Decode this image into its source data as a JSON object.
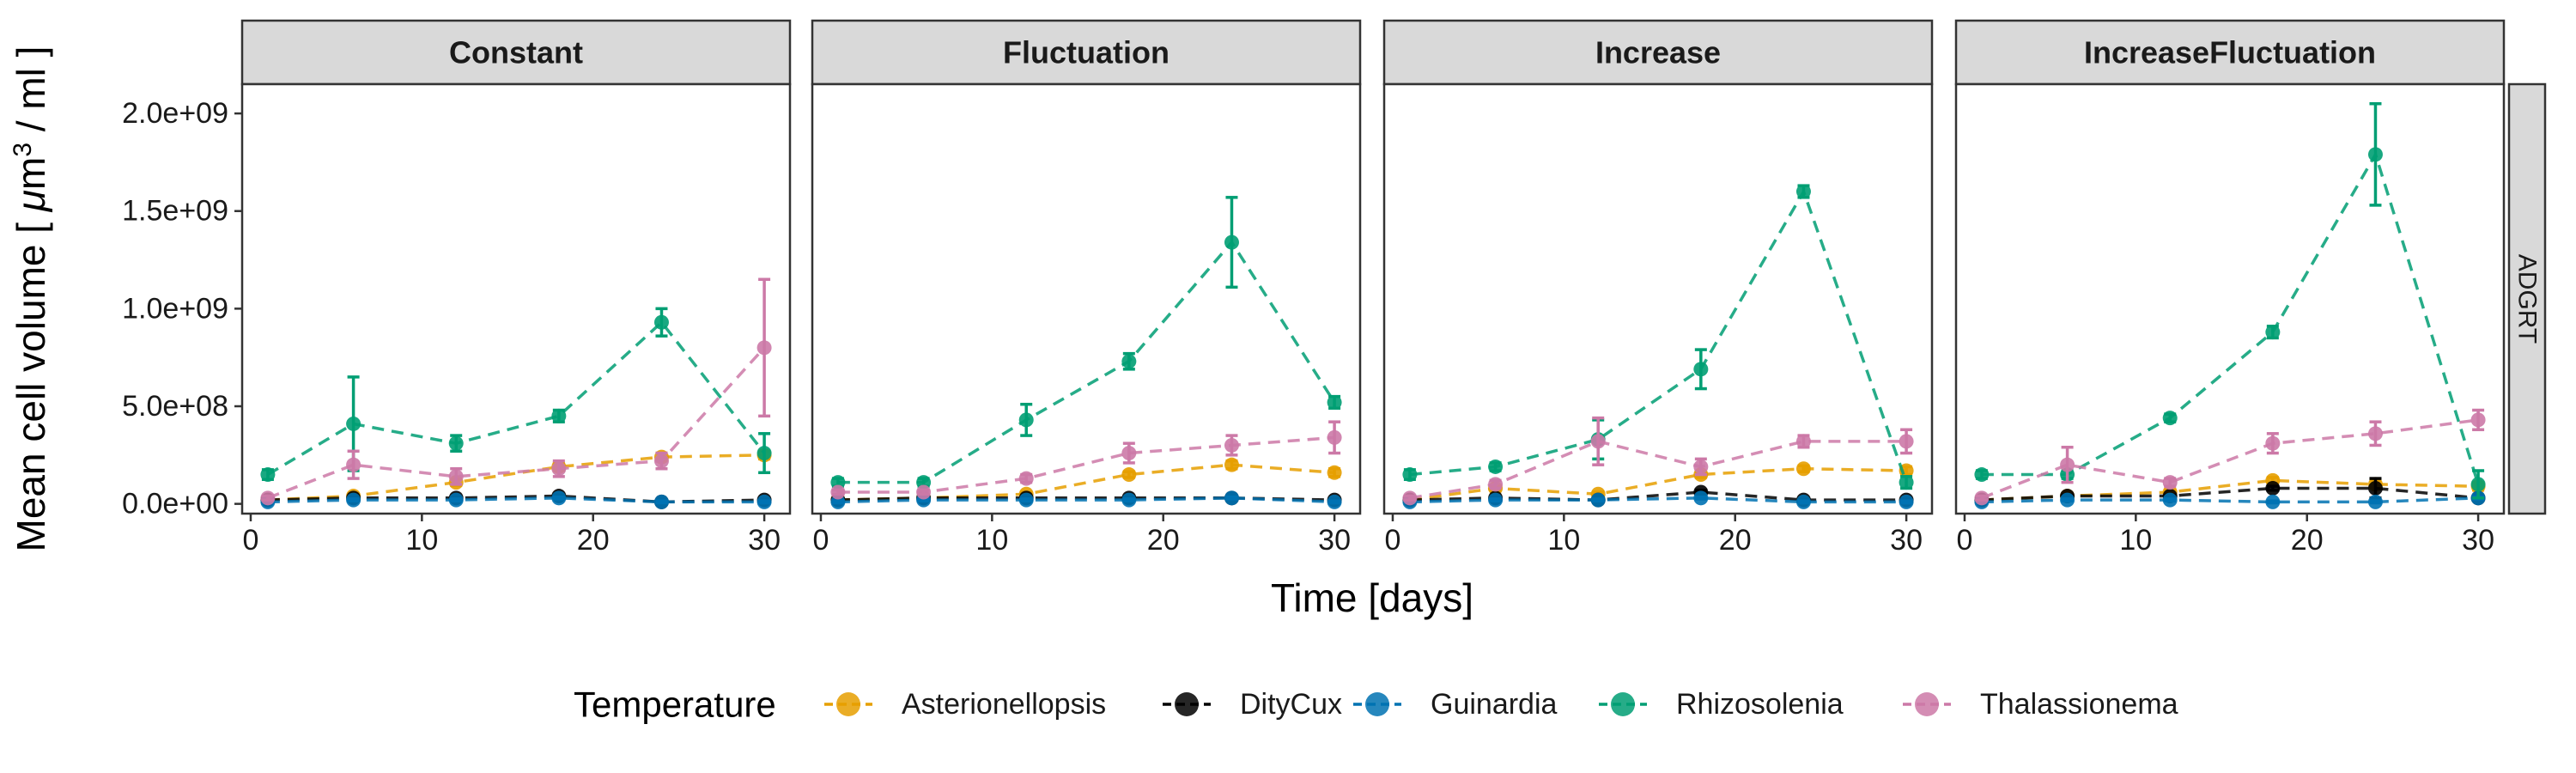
{
  "chart_data": {
    "type": "line",
    "facet_row_label": "ADGRT",
    "xlabel": "Time [days]",
    "ylabel": "Mean cell volume [ μm³ / ml ]",
    "ylabel_parts": {
      "pre": "Mean cell volume [ ",
      "mu": "μ",
      "m": "m",
      "sup": "3",
      "post": " / ml ]"
    },
    "xlim": [
      -0.5,
      31.5
    ],
    "ylim": [
      -50000000,
      2150000000
    ],
    "x_ticks": [
      0,
      10,
      20,
      30
    ],
    "x_tick_labels": [
      "0",
      "10",
      "20",
      "30"
    ],
    "y_ticks": [
      0,
      500000000,
      1000000000,
      1500000000,
      2000000000
    ],
    "y_tick_labels": [
      "0.0e+00",
      "5.0e+08",
      "1.0e+09",
      "1.5e+09",
      "2.0e+09"
    ],
    "legend": {
      "title": "Temperature",
      "placement": "bottom",
      "entries": [
        "Asterionellopsis",
        "DityCux",
        "Guinardia",
        "Rhizosolenia",
        "Thalassionema"
      ]
    },
    "series_colors": {
      "Asterionellopsis": "#E69F00",
      "DityCux": "#000000",
      "Guinardia": "#0072B2",
      "Rhizosolenia": "#009E73",
      "Thalassionema": "#CC79A7"
    },
    "x": [
      1,
      6,
      12,
      18,
      24,
      30
    ],
    "panels": [
      {
        "title": "Constant",
        "series": [
          {
            "name": "Asterionellopsis",
            "values": [
              20000000,
              40000000,
              110000000,
              190000000,
              240000000,
              250000000
            ],
            "err": [
              5000000,
              10000000,
              15000000,
              20000000,
              20000000,
              20000000
            ]
          },
          {
            "name": "DityCux",
            "values": [
              20000000,
              30000000,
              30000000,
              40000000,
              10000000,
              20000000
            ],
            "err": [
              5000000,
              5000000,
              5000000,
              5000000,
              5000000,
              5000000
            ]
          },
          {
            "name": "Guinardia",
            "values": [
              10000000,
              20000000,
              20000000,
              30000000,
              10000000,
              10000000
            ],
            "err": [
              5000000,
              5000000,
              5000000,
              5000000,
              5000000,
              5000000
            ]
          },
          {
            "name": "Rhizosolenia",
            "values": [
              150000000,
              410000000,
              310000000,
              450000000,
              930000000,
              260000000
            ],
            "err": [
              25000000,
              240000000,
              40000000,
              30000000,
              70000000,
              100000000
            ]
          },
          {
            "name": "Thalassionema",
            "values": [
              30000000,
              200000000,
              140000000,
              180000000,
              220000000,
              800000000
            ],
            "err": [
              10000000,
              70000000,
              40000000,
              40000000,
              40000000,
              350000000
            ]
          }
        ]
      },
      {
        "title": "Fluctuation",
        "series": [
          {
            "name": "Asterionellopsis",
            "values": [
              20000000,
              30000000,
              50000000,
              150000000,
              200000000,
              160000000
            ],
            "err": [
              5000000,
              5000000,
              10000000,
              15000000,
              20000000,
              20000000
            ]
          },
          {
            "name": "DityCux",
            "values": [
              20000000,
              30000000,
              30000000,
              30000000,
              30000000,
              20000000
            ],
            "err": [
              5000000,
              5000000,
              5000000,
              5000000,
              5000000,
              5000000
            ]
          },
          {
            "name": "Guinardia",
            "values": [
              10000000,
              20000000,
              20000000,
              20000000,
              30000000,
              10000000
            ],
            "err": [
              5000000,
              5000000,
              5000000,
              5000000,
              5000000,
              5000000
            ]
          },
          {
            "name": "Rhizosolenia",
            "values": [
              110000000,
              110000000,
              430000000,
              730000000,
              1340000000,
              520000000
            ],
            "err": [
              20000000,
              20000000,
              80000000,
              40000000,
              230000000,
              30000000
            ]
          },
          {
            "name": "Thalassionema",
            "values": [
              60000000,
              60000000,
              130000000,
              260000000,
              300000000,
              340000000
            ],
            "err": [
              10000000,
              10000000,
              20000000,
              50000000,
              50000000,
              80000000
            ]
          }
        ]
      },
      {
        "title": "Increase",
        "series": [
          {
            "name": "Asterionellopsis",
            "values": [
              20000000,
              80000000,
              50000000,
              150000000,
              180000000,
              170000000
            ],
            "err": [
              5000000,
              10000000,
              10000000,
              15000000,
              15000000,
              20000000
            ]
          },
          {
            "name": "DityCux",
            "values": [
              20000000,
              30000000,
              20000000,
              60000000,
              20000000,
              20000000
            ],
            "err": [
              5000000,
              5000000,
              5000000,
              10000000,
              5000000,
              5000000
            ]
          },
          {
            "name": "Guinardia",
            "values": [
              10000000,
              20000000,
              20000000,
              30000000,
              10000000,
              10000000
            ],
            "err": [
              5000000,
              5000000,
              5000000,
              5000000,
              5000000,
              5000000
            ]
          },
          {
            "name": "Rhizosolenia",
            "values": [
              150000000,
              190000000,
              330000000,
              690000000,
              1600000000,
              110000000
            ],
            "err": [
              25000000,
              20000000,
              100000000,
              100000000,
              30000000,
              30000000
            ]
          },
          {
            "name": "Thalassionema",
            "values": [
              30000000,
              100000000,
              320000000,
              190000000,
              320000000,
              320000000
            ],
            "err": [
              10000000,
              20000000,
              120000000,
              40000000,
              30000000,
              60000000
            ]
          }
        ]
      },
      {
        "title": "IncreaseFluctuation",
        "series": [
          {
            "name": "Asterionellopsis",
            "values": [
              20000000,
              40000000,
              60000000,
              120000000,
              100000000,
              90000000
            ],
            "err": [
              5000000,
              10000000,
              10000000,
              15000000,
              20000000,
              20000000
            ]
          },
          {
            "name": "DityCux",
            "values": [
              20000000,
              40000000,
              40000000,
              80000000,
              80000000,
              30000000
            ],
            "err": [
              5000000,
              5000000,
              5000000,
              10000000,
              50000000,
              5000000
            ]
          },
          {
            "name": "Guinardia",
            "values": [
              10000000,
              20000000,
              20000000,
              10000000,
              10000000,
              30000000
            ],
            "err": [
              5000000,
              5000000,
              5000000,
              5000000,
              5000000,
              5000000
            ]
          },
          {
            "name": "Rhizosolenia",
            "values": [
              150000000,
              150000000,
              440000000,
              880000000,
              1790000000,
              100000000
            ],
            "err": [
              20000000,
              20000000,
              20000000,
              30000000,
              260000000,
              70000000
            ]
          },
          {
            "name": "Thalassionema",
            "values": [
              30000000,
              200000000,
              110000000,
              310000000,
              360000000,
              430000000
            ],
            "err": [
              10000000,
              90000000,
              20000000,
              50000000,
              60000000,
              50000000
            ]
          }
        ]
      }
    ]
  }
}
